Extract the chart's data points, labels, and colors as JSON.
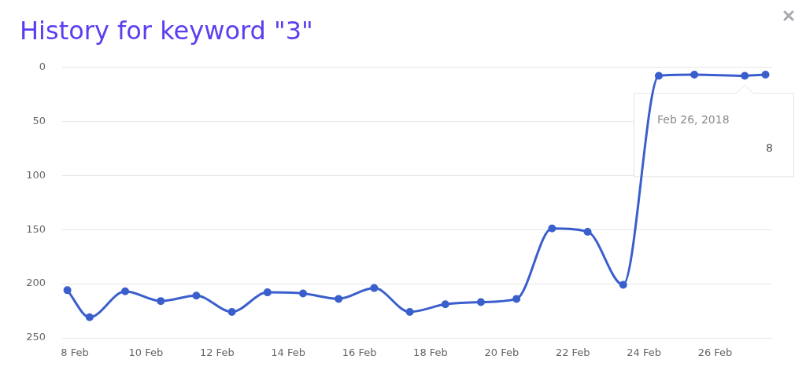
{
  "chart_data": {
    "type": "line",
    "title": "History for keyword \"3\"",
    "x": [
      "2018-02-07T19:00",
      "2018-02-08T10:00",
      "2018-02-09T10:00",
      "2018-02-10T10:00",
      "2018-02-11T10:00",
      "2018-02-12T10:00",
      "2018-02-13T10:00",
      "2018-02-14T10:00",
      "2018-02-15T10:00",
      "2018-02-16T10:00",
      "2018-02-17T10:00",
      "2018-02-18T10:00",
      "2018-02-19T10:00",
      "2018-02-20T10:00",
      "2018-02-21T10:00",
      "2018-02-22T10:00",
      "2018-02-23T10:00",
      "2018-02-24T10:00",
      "2018-02-25T10:00",
      "2018-02-26T20:00",
      "2018-02-27T10:00"
    ],
    "series": [
      {
        "color": "#3a5fcd",
        "values": [
          206,
          231,
          207,
          216,
          211,
          226,
          208,
          209,
          214,
          204,
          226,
          219,
          217,
          214,
          149,
          152,
          201,
          8,
          7,
          8,
          7
        ]
      }
    ],
    "xlim": [
      "2018-02-07T15:30",
      "2018-02-27T14:30"
    ],
    "xticks": [
      {
        "value": "2018-02-08",
        "label": "8 Feb"
      },
      {
        "value": "2018-02-10",
        "label": "10 Feb"
      },
      {
        "value": "2018-02-12",
        "label": "12 Feb"
      },
      {
        "value": "2018-02-14",
        "label": "14 Feb"
      },
      {
        "value": "2018-02-16",
        "label": "16 Feb"
      },
      {
        "value": "2018-02-18",
        "label": "18 Feb"
      },
      {
        "value": "2018-02-20",
        "label": "20 Feb"
      },
      {
        "value": "2018-02-22",
        "label": "22 Feb"
      },
      {
        "value": "2018-02-24",
        "label": "24 Feb"
      },
      {
        "value": "2018-02-26",
        "label": "26 Feb"
      }
    ],
    "ylim": [
      250,
      0
    ],
    "yticks": [
      0,
      50,
      100,
      150,
      200,
      250
    ],
    "grid": "y",
    "marker": "circle",
    "annotations": [
      "Feb 26, 2018",
      "8"
    ]
  }
}
